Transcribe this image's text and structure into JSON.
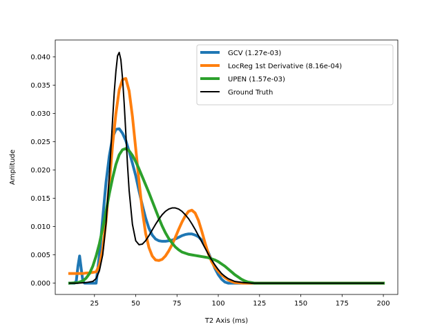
{
  "chart_data": {
    "type": "line",
    "title": "",
    "xlabel": "T2 Axis (ms)",
    "ylabel": "Amplitude",
    "xlim": [
      1.25,
      208.75
    ],
    "ylim": [
      -0.002,
      0.043
    ],
    "xticks": [
      25,
      50,
      75,
      100,
      125,
      150,
      175,
      200
    ],
    "xtick_labels": [
      "25",
      "50",
      "75",
      "100",
      "125",
      "150",
      "175",
      "200"
    ],
    "yticks": [
      0.0,
      0.005,
      0.01,
      0.015,
      0.02,
      0.025,
      0.03,
      0.035,
      0.04
    ],
    "ytick_labels": [
      "0.000",
      "0.005",
      "0.010",
      "0.015",
      "0.020",
      "0.025",
      "0.030",
      "0.035",
      "0.040"
    ],
    "grid": false,
    "legend_position": "upper right",
    "series": [
      {
        "name": "GCV  (1.27e-03)",
        "color": "#1f77b4",
        "x": [
          10,
          13,
          14,
          15,
          16,
          17,
          18,
          19,
          20,
          22,
          24,
          26,
          28,
          30,
          32,
          34,
          36,
          38,
          40,
          42,
          44,
          46,
          48,
          50,
          52,
          54,
          56,
          58,
          60,
          62,
          64,
          66,
          68,
          70,
          72,
          74,
          76,
          78,
          80,
          82,
          84,
          86,
          88,
          90,
          92,
          94,
          96,
          98,
          100,
          102,
          104,
          106,
          108,
          110,
          115,
          120,
          130,
          150,
          175,
          200
        ],
        "y": [
          0.0,
          0.0,
          0.0004,
          0.003,
          0.0048,
          0.0025,
          0.0003,
          0.0,
          0.0,
          0.0,
          0.0,
          0.0,
          0.005,
          0.0115,
          0.0178,
          0.0225,
          0.0258,
          0.0272,
          0.0273,
          0.0265,
          0.0252,
          0.0233,
          0.0212,
          0.019,
          0.0163,
          0.0138,
          0.0115,
          0.0097,
          0.0085,
          0.0078,
          0.0075,
          0.0074,
          0.0074,
          0.0075,
          0.0076,
          0.0078,
          0.0081,
          0.0084,
          0.0086,
          0.0087,
          0.0087,
          0.0085,
          0.0082,
          0.0076,
          0.0066,
          0.0054,
          0.004,
          0.0026,
          0.0015,
          0.0007,
          0.0002,
          0.0,
          0.0,
          0.0,
          0.0,
          0.0,
          0.0,
          0.0,
          0.0,
          0.0
        ]
      },
      {
        "name": "LocReg  1st Derivative (8.16e-04)",
        "color": "#ff7f0e",
        "x": [
          10,
          15,
          18,
          20,
          22,
          24,
          26,
          28,
          30,
          32,
          34,
          36,
          38,
          40,
          42,
          44,
          46,
          48,
          50,
          52,
          54,
          56,
          58,
          60,
          62,
          64,
          66,
          68,
          70,
          72,
          74,
          76,
          78,
          80,
          82,
          84,
          86,
          88,
          90,
          92,
          94,
          96,
          98,
          100,
          102,
          104,
          106,
          108,
          110,
          115,
          120,
          125,
          130,
          150,
          175,
          200
        ],
        "y": [
          0.0017,
          0.0017,
          0.0017,
          0.0018,
          0.0018,
          0.0019,
          0.002,
          0.0032,
          0.006,
          0.011,
          0.0175,
          0.0245,
          0.03,
          0.0342,
          0.036,
          0.0362,
          0.034,
          0.0295,
          0.0238,
          0.018,
          0.0128,
          0.0088,
          0.0063,
          0.0048,
          0.0041,
          0.004,
          0.0042,
          0.0048,
          0.0057,
          0.0068,
          0.0081,
          0.0095,
          0.0108,
          0.0119,
          0.0127,
          0.0129,
          0.0124,
          0.0111,
          0.0092,
          0.0071,
          0.0052,
          0.0038,
          0.0028,
          0.0021,
          0.0015,
          0.001,
          0.0006,
          0.0003,
          0.0001,
          0.0,
          0.0,
          0.0,
          0.0,
          0.0,
          0.0,
          0.0
        ]
      },
      {
        "name": "UPEN  (1.57e-03)",
        "color": "#2ca02c",
        "x": [
          10,
          15,
          18,
          20,
          22,
          24,
          26,
          28,
          30,
          32,
          34,
          36,
          38,
          40,
          42,
          44,
          46,
          48,
          50,
          52,
          54,
          56,
          58,
          60,
          62,
          64,
          66,
          68,
          70,
          72,
          74,
          76,
          78,
          80,
          82,
          84,
          86,
          88,
          90,
          92,
          94,
          96,
          98,
          100,
          102,
          104,
          106,
          108,
          110,
          112,
          114,
          116,
          118,
          120,
          122,
          125,
          130,
          150,
          175,
          200
        ],
        "y": [
          0.0,
          0.0001,
          0.0004,
          0.0009,
          0.0017,
          0.003,
          0.0048,
          0.007,
          0.0097,
          0.0127,
          0.0158,
          0.0186,
          0.021,
          0.0227,
          0.0236,
          0.0238,
          0.0234,
          0.0226,
          0.0215,
          0.0202,
          0.0188,
          0.0174,
          0.016,
          0.0145,
          0.013,
          0.0115,
          0.0101,
          0.0089,
          0.0079,
          0.0071,
          0.0064,
          0.0059,
          0.0055,
          0.0053,
          0.0051,
          0.005,
          0.0049,
          0.0048,
          0.0047,
          0.0046,
          0.0045,
          0.0043,
          0.0041,
          0.0038,
          0.0034,
          0.003,
          0.0025,
          0.002,
          0.0015,
          0.0011,
          0.0007,
          0.0004,
          0.0002,
          0.0001,
          0.0,
          0.0,
          0.0,
          0.0,
          0.0,
          0.0
        ]
      },
      {
        "name": "Ground Truth",
        "color": "#000000",
        "x": [
          10,
          15,
          20,
          24,
          26,
          28,
          30,
          32,
          34,
          36,
          37,
          38,
          39,
          40,
          41,
          42,
          43,
          44,
          45,
          46,
          48,
          50,
          52,
          54,
          56,
          58,
          60,
          62,
          64,
          66,
          68,
          70,
          72,
          74,
          76,
          78,
          80,
          82,
          84,
          86,
          88,
          90,
          92,
          94,
          96,
          98,
          100,
          102,
          104,
          106,
          110,
          115,
          120,
          130,
          150,
          175,
          200
        ],
        "y": [
          0.0,
          0.0,
          0.0001,
          0.0003,
          0.0008,
          0.0022,
          0.005,
          0.0105,
          0.019,
          0.029,
          0.0338,
          0.0375,
          0.0402,
          0.0408,
          0.0395,
          0.0362,
          0.0318,
          0.0265,
          0.021,
          0.0164,
          0.0104,
          0.0075,
          0.0068,
          0.0069,
          0.0075,
          0.0084,
          0.0094,
          0.0104,
          0.0113,
          0.0121,
          0.0127,
          0.0131,
          0.0133,
          0.0133,
          0.0131,
          0.0127,
          0.0121,
          0.0114,
          0.0105,
          0.0095,
          0.0084,
          0.0073,
          0.0062,
          0.0051,
          0.0041,
          0.0032,
          0.0024,
          0.0017,
          0.0012,
          0.0008,
          0.0003,
          0.0001,
          0.0,
          0.0,
          0.0,
          0.0,
          0.0
        ]
      }
    ]
  }
}
